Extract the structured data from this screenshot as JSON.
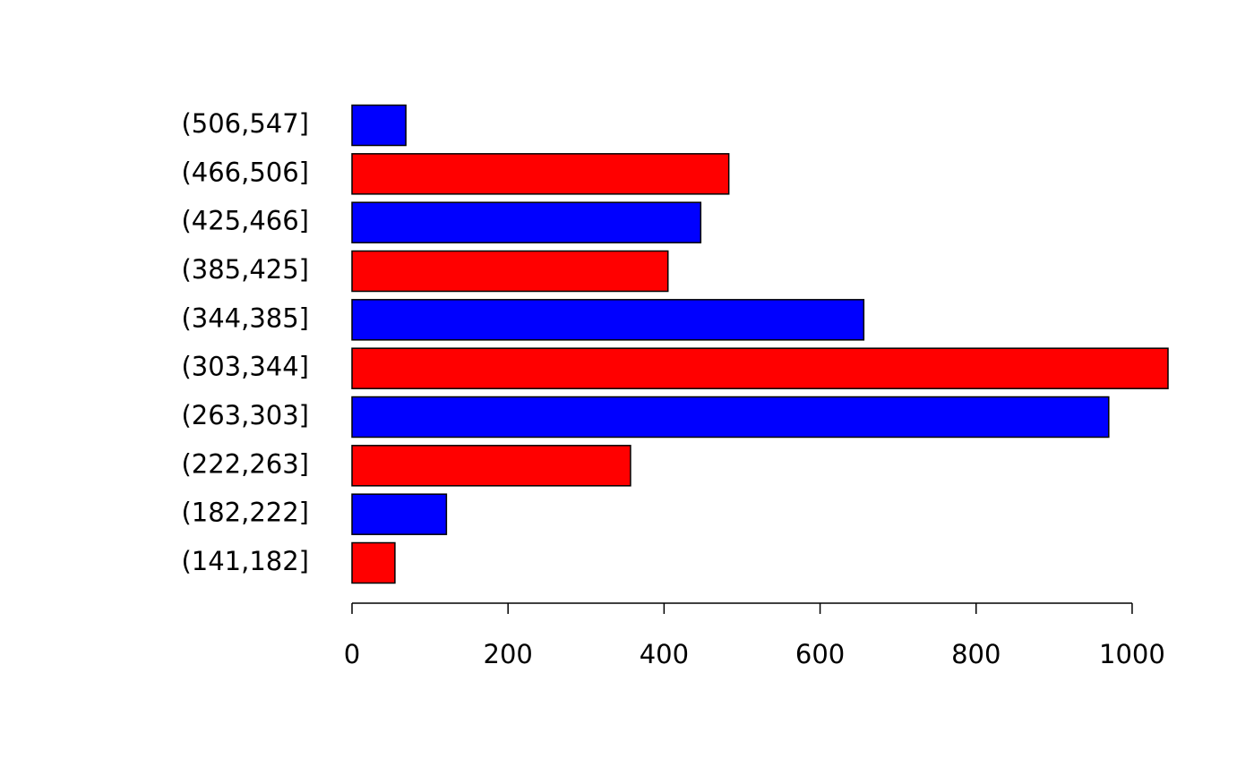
{
  "chart_data": {
    "type": "barh",
    "categories": [
      "(141,182]",
      "(182,222]",
      "(222,263]",
      "(263,303]",
      "(303,344]",
      "(344,385]",
      "(385,425]",
      "(425,466]",
      "(466,506]",
      "(506,547]"
    ],
    "values": [
      55,
      121,
      357,
      970,
      1046,
      656,
      405,
      447,
      483,
      69
    ],
    "colors": [
      "#ff0000",
      "#0000ff",
      "#ff0000",
      "#0000ff",
      "#ff0000",
      "#0000ff",
      "#ff0000",
      "#0000ff",
      "#ff0000",
      "#0000ff"
    ],
    "xlim": [
      0,
      1046
    ],
    "xticks": [
      0,
      200,
      400,
      600,
      800,
      1000
    ]
  }
}
